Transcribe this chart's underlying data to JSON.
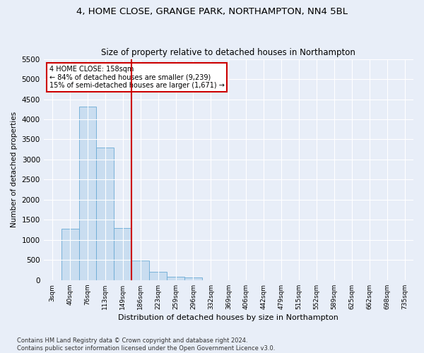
{
  "title": "4, HOME CLOSE, GRANGE PARK, NORTHAMPTON, NN4 5BL",
  "subtitle": "Size of property relative to detached houses in Northampton",
  "xlabel": "Distribution of detached houses by size in Northampton",
  "ylabel": "Number of detached properties",
  "footer_line1": "Contains HM Land Registry data © Crown copyright and database right 2024.",
  "footer_line2": "Contains public sector information licensed under the Open Government Licence v3.0.",
  "annotation_line1": "4 HOME CLOSE: 158sqm",
  "annotation_line2": "← 84% of detached houses are smaller (9,239)",
  "annotation_line3": "15% of semi-detached houses are larger (1,671) →",
  "bar_labels": [
    "3sqm",
    "40sqm",
    "76sqm",
    "113sqm",
    "149sqm",
    "186sqm",
    "223sqm",
    "259sqm",
    "296sqm",
    "332sqm",
    "369sqm",
    "406sqm",
    "442sqm",
    "479sqm",
    "515sqm",
    "552sqm",
    "589sqm",
    "625sqm",
    "662sqm",
    "698sqm",
    "735sqm"
  ],
  "bar_values": [
    0,
    1270,
    4320,
    3300,
    1290,
    490,
    210,
    90,
    60,
    0,
    0,
    0,
    0,
    0,
    0,
    0,
    0,
    0,
    0,
    0,
    0
  ],
  "bar_color": "#c9ddf0",
  "bar_edge_color": "#6aaad4",
  "vline_x": 4.5,
  "vline_color": "#cc0000",
  "ylim": [
    0,
    5500
  ],
  "yticks": [
    0,
    500,
    1000,
    1500,
    2000,
    2500,
    3000,
    3500,
    4000,
    4500,
    5000,
    5500
  ],
  "bg_color": "#e8eef8",
  "axes_bg_color": "#e8eef8",
  "annotation_box_color": "#ffffff",
  "annotation_box_edge": "#cc0000",
  "title_fontsize": 9.5,
  "subtitle_fontsize": 8.5
}
